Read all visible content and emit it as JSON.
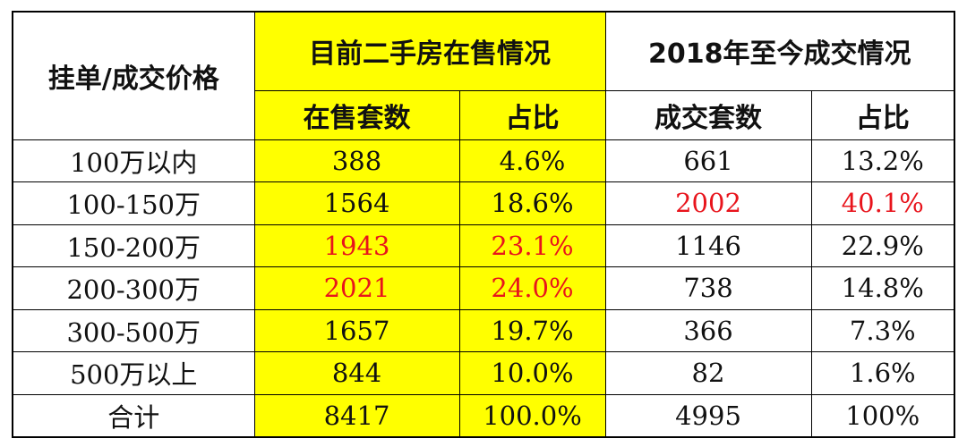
{
  "header": {
    "price_col": "挂单/成交价格",
    "group_listing": "目前二手房在售情况",
    "group_deals": "2018年至今成交情况",
    "listing_count": "在售套数",
    "listing_share": "占比",
    "deal_count": "成交套数",
    "deal_share": "占比"
  },
  "colors": {
    "highlight": "#ffff00",
    "emphasis": "#e8141c"
  },
  "rows": [
    {
      "price": "100万以内",
      "listing": "388",
      "listing_pct": "4.6%",
      "deals": "661",
      "deals_pct": "13.2%"
    },
    {
      "price": "100-150万",
      "listing": "1564",
      "listing_pct": "18.6%",
      "deals": "2002",
      "deals_pct": "40.1%"
    },
    {
      "price": "150-200万",
      "listing": "1943",
      "listing_pct": "23.1%",
      "deals": "1146",
      "deals_pct": "22.9%"
    },
    {
      "price": "200-300万",
      "listing": "2021",
      "listing_pct": "24.0%",
      "deals": "738",
      "deals_pct": "14.8%"
    },
    {
      "price": "300-500万",
      "listing": "1657",
      "listing_pct": "19.7%",
      "deals": "366",
      "deals_pct": "7.3%"
    },
    {
      "price": "500万以上",
      "listing": "844",
      "listing_pct": "10.0%",
      "deals": "82",
      "deals_pct": "1.6%"
    },
    {
      "price": "合计",
      "listing": "8417",
      "listing_pct": "100.0%",
      "deals": "4995",
      "deals_pct": "100%"
    }
  ],
  "red_cells": [
    [
      1,
      "deals"
    ],
    [
      1,
      "deals_pct"
    ],
    [
      2,
      "listing"
    ],
    [
      2,
      "listing_pct"
    ],
    [
      3,
      "listing"
    ],
    [
      3,
      "listing_pct"
    ]
  ]
}
